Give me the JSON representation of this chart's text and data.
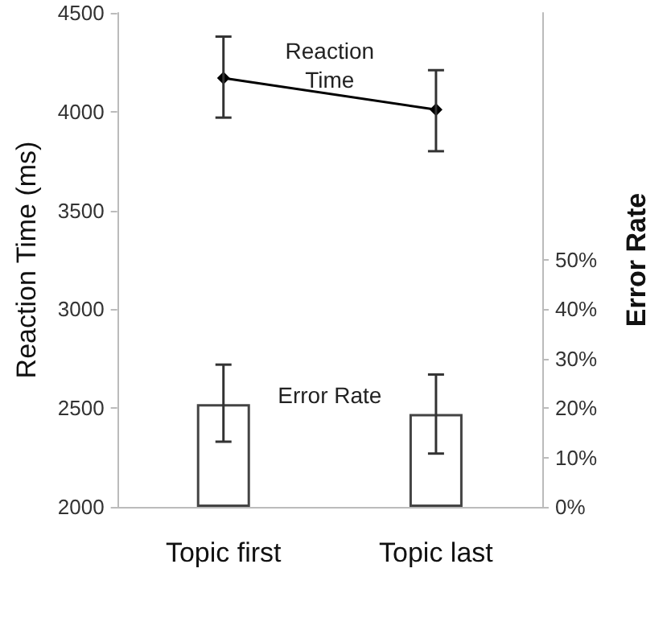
{
  "chart_data": {
    "type": "bar",
    "categories": [
      "Topic first",
      "Topic last"
    ],
    "ylabel": "Reaction Time (ms)",
    "y2label": "Error Rate",
    "ylim": [
      2000,
      4500
    ],
    "yticks": [
      2000,
      2500,
      3000,
      3500,
      4000,
      4500
    ],
    "y2lim": [
      0,
      100
    ],
    "y2ticks": [
      {
        "value": 0,
        "label": "0%"
      },
      {
        "value": 10,
        "label": "10%"
      },
      {
        "value": 20,
        "label": "20%"
      },
      {
        "value": 30,
        "label": "30%"
      },
      {
        "value": 40,
        "label": "40%"
      },
      {
        "value": 50,
        "label": "50%"
      }
    ],
    "series": [
      {
        "name": "Reaction Time",
        "type": "line",
        "color": "#000000",
        "marker": "diamond",
        "values": [
          4170,
          4010
        ],
        "errors": [
          [
            3970,
            4380
          ],
          [
            3800,
            4210
          ]
        ]
      },
      {
        "name": "Error Rate",
        "axis": "y2",
        "color": "#ffffff",
        "values": [
          20.8,
          18.8
        ],
        "errors": [
          [
            13.2,
            28.8
          ],
          [
            10.8,
            26.8
          ]
        ]
      }
    ],
    "legend": false,
    "grid": false
  }
}
